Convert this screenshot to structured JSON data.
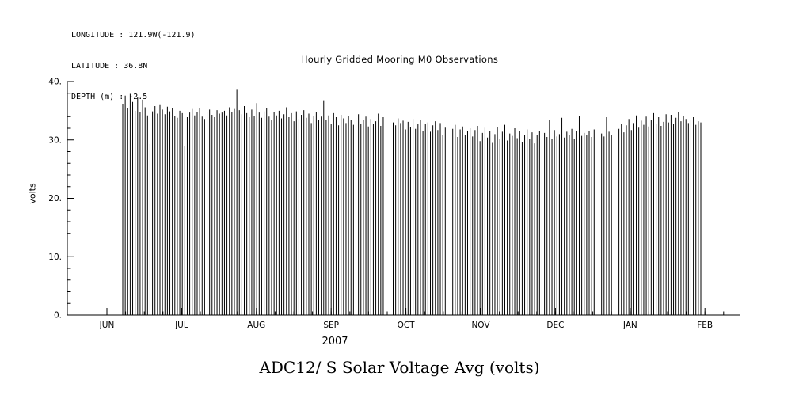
{
  "figure": {
    "background": "#ffffff",
    "ink": "#000000"
  },
  "metadata": {
    "longitude": "LONGITUDE : 121.9W(-121.9)",
    "latitude": "LATITUDE : 36.8N",
    "depth": "DEPTH (m) : -2.5"
  },
  "chart_data": {
    "type": "line",
    "title": "Hourly Gridded Mooring M0 Observations",
    "footer_title": "ADC12/ S Solar Voltage Avg (volts)",
    "xlabel": "2007",
    "ylabel": "volts",
    "ylim": [
      0,
      40
    ],
    "ytick_values": [
      0,
      10,
      20,
      30,
      40
    ],
    "ytick_labels": [
      "0.",
      "10.",
      "20.",
      "30.",
      "40."
    ],
    "month_labels": [
      "JUN",
      "JUL",
      "AUG",
      "SEP",
      "OCT",
      "NOV",
      "DEC",
      "JAN",
      "FEB"
    ],
    "series_name": "ADC12/S Solar Voltage Avg",
    "description": "Daily solar charging cycles: the voltage rises from ~0 V at night to a daily peak and back, one spike per day, from mid-June 2007 to early February 2008. Zero entries are data gaps (white bands).",
    "daily_peaks": [
      36.2,
      37.6,
      35.4,
      37.9,
      36.5,
      35.0,
      37.3,
      34.8,
      36.9,
      35.6,
      34.2,
      29.3,
      34.9,
      35.8,
      34.5,
      36.1,
      35.2,
      34.4,
      35.7,
      34.9,
      35.4,
      34.1,
      33.8,
      35.0,
      34.6,
      29.0,
      33.9,
      34.7,
      35.3,
      34.2,
      34.8,
      35.5,
      34.0,
      33.6,
      34.9,
      35.2,
      34.3,
      33.9,
      35.1,
      34.5,
      34.7,
      35.0,
      34.2,
      35.6,
      34.8,
      35.3,
      38.6,
      35.1,
      34.4,
      35.8,
      34.6,
      33.9,
      35.2,
      34.1,
      36.3,
      34.7,
      33.8,
      34.9,
      35.4,
      34.0,
      33.5,
      34.8,
      34.2,
      35.0,
      33.7,
      34.4,
      35.6,
      33.9,
      34.6,
      33.2,
      34.9,
      33.6,
      34.3,
      35.1,
      33.8,
      34.5,
      32.9,
      34.1,
      34.8,
      33.4,
      34.0,
      36.8,
      33.5,
      34.2,
      32.8,
      34.6,
      33.9,
      32.5,
      34.3,
      33.7,
      32.9,
      34.1,
      33.4,
      32.6,
      33.8,
      34.4,
      32.7,
      33.5,
      34.0,
      32.3,
      33.6,
      32.8,
      33.2,
      34.5,
      32.4,
      33.9,
      0,
      0,
      0,
      33.0,
      32.5,
      33.7,
      32.9,
      33.3,
      31.8,
      33.1,
      32.2,
      33.6,
      31.9,
      32.8,
      33.4,
      31.6,
      32.7,
      33.0,
      31.4,
      32.5,
      33.2,
      31.7,
      32.9,
      30.8,
      32.1,
      0,
      0,
      31.9,
      32.6,
      30.5,
      31.8,
      32.3,
      30.9,
      31.5,
      32.0,
      30.6,
      31.7,
      32.4,
      29.8,
      31.2,
      32.1,
      30.4,
      31.6,
      29.5,
      31.0,
      32.2,
      30.1,
      31.4,
      32.6,
      29.9,
      31.1,
      30.7,
      32.0,
      30.3,
      31.5,
      29.6,
      30.9,
      31.8,
      30.2,
      31.3,
      29.4,
      30.8,
      31.6,
      30.0,
      31.2,
      30.5,
      33.4,
      30.1,
      31.7,
      30.6,
      31.0,
      33.8,
      30.4,
      31.4,
      30.8,
      31.9,
      30.2,
      31.5,
      34.1,
      30.7,
      31.2,
      30.9,
      31.6,
      30.5,
      31.8,
      0,
      0,
      31.1,
      30.6,
      33.9,
      31.4,
      30.8,
      0,
      0,
      31.9,
      32.8,
      31.3,
      32.5,
      33.6,
      31.7,
      32.9,
      34.2,
      32.1,
      33.3,
      32.6,
      34.0,
      32.3,
      33.5,
      34.6,
      32.8,
      33.9,
      32.4,
      33.1,
      34.4,
      33.0,
      34.3,
      32.7,
      33.8,
      34.8,
      33.2,
      34.1,
      33.6,
      32.9,
      33.4,
      33.9,
      32.6,
      33.2,
      33.0
    ]
  }
}
